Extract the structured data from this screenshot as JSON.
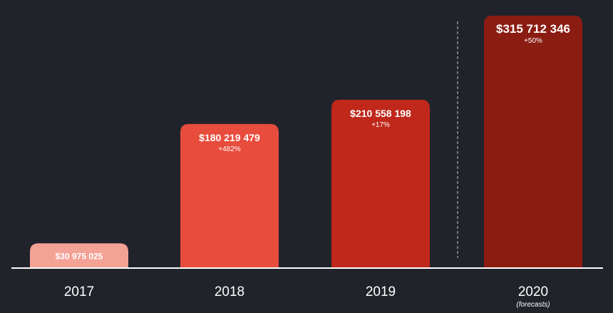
{
  "chart_data": {
    "type": "bar",
    "title": "",
    "xlabel": "",
    "ylabel": "",
    "categories": [
      "2017",
      "2018",
      "2019",
      "2020"
    ],
    "category_notes": [
      "",
      "",
      "",
      "(forecasts)"
    ],
    "values": [
      30975025,
      180219479,
      210558198,
      315712346
    ],
    "value_labels": [
      "$30 975 025",
      "$180 219 479",
      "$210 558 198",
      "$315 712 346"
    ],
    "growth_labels": [
      "",
      "+482%",
      "+17%",
      "+50%"
    ],
    "colors": [
      "#f4a196",
      "#e84c3d",
      "#c0281b",
      "#8b1c12"
    ],
    "forecast_divider": "between 2019 and 2020",
    "grid": false,
    "legend": "none"
  }
}
